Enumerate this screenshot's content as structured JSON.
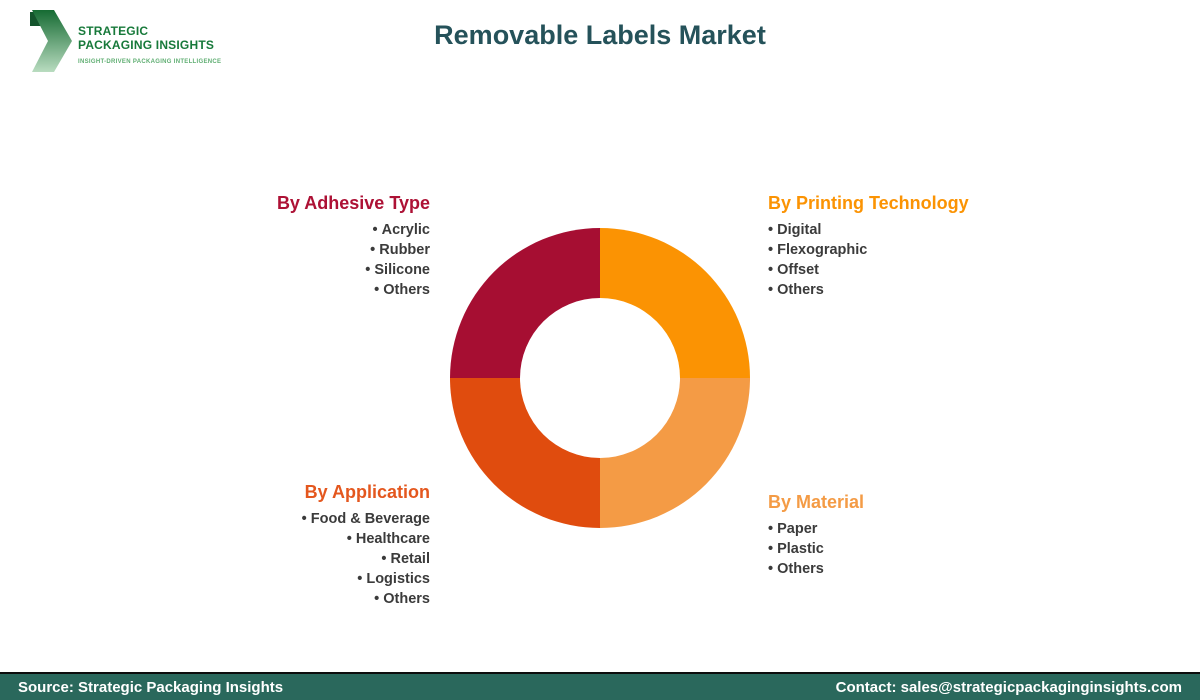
{
  "logo": {
    "line1": "STRATEGIC",
    "line2": "PACKAGING INSIGHTS",
    "tagline": "INSIGHT-DRIVEN PACKAGING INTELLIGENCE",
    "green_dark": "#17793a",
    "green_light": "#5fae72"
  },
  "header": {
    "title": "Removable Labels Market",
    "title_color": "#25525a"
  },
  "segments": [
    {
      "id": "adhesive",
      "title": "By Adhesive Type",
      "color": "#ad1135",
      "items": [
        "Acrylic",
        "Rubber",
        "Silicone",
        "Others"
      ]
    },
    {
      "id": "printing",
      "title": "By Printing Technology",
      "color": "#fb9303",
      "items": [
        "Digital",
        "Flexographic",
        "Offset",
        "Others"
      ]
    },
    {
      "id": "application",
      "title": "By Application",
      "color": "#e4571e",
      "items": [
        "Food & Beverage",
        "Healthcare",
        "Retail",
        "Logistics",
        "Others"
      ]
    },
    {
      "id": "material",
      "title": "By Material",
      "color": "#f49b45",
      "items": [
        "Paper",
        "Plastic",
        "Others"
      ]
    }
  ],
  "chart_data": {
    "type": "pie",
    "title": "Removable Labels Market segmentation donut",
    "legend_position": "around",
    "donut_hole_ratio": 0.53,
    "slices": [
      {
        "label": "By Printing Technology",
        "value": 25,
        "color": "#fb9303",
        "position": "top-right"
      },
      {
        "label": "By Material",
        "value": 25,
        "color": "#f49b45",
        "position": "bottom-right"
      },
      {
        "label": "By Application",
        "value": 25,
        "color": "#e04c0e",
        "position": "bottom-left"
      },
      {
        "label": "By Adhesive Type",
        "value": 25,
        "color": "#a60e32",
        "position": "top-left"
      }
    ]
  },
  "footer": {
    "source": "Source: Strategic Packaging Insights",
    "contact": "Contact: sales@strategicpackaginginsights.com",
    "bar_color": "#2a685c"
  }
}
